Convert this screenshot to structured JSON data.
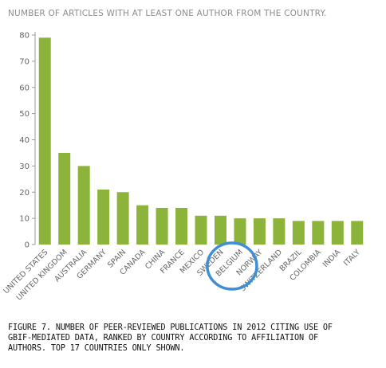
{
  "chart_data": {
    "type": "bar",
    "title": "NUMBER OF ARTICLES WITH AT LEAST ONE AUTHOR FROM THE COUNTRY.",
    "xlabel": "",
    "ylabel": "",
    "categories": [
      "UNITED STATES",
      "UNITED KINGDOM",
      "AUSTRALIA",
      "GERMANY",
      "SPAIN",
      "CANADA",
      "CHINA",
      "FRANCE",
      "MEXICO",
      "SWEDEN",
      "BELGIUM",
      "NORWAY",
      "SWITZERLAND",
      "BRAZIL",
      "COLOMBIA",
      "INDIA",
      "ITALY"
    ],
    "values": [
      79,
      35,
      30,
      21,
      20,
      15,
      14,
      14,
      11,
      11,
      10,
      10,
      10,
      9,
      9,
      9,
      9
    ],
    "ylim": [
      0,
      80
    ],
    "yticks": [
      "0",
      "10",
      "20",
      "30",
      "40",
      "50",
      "60",
      "70",
      "80"
    ],
    "grid": false,
    "highlighted_category": "BELGIUM",
    "colors": {
      "bar": "#8cb43a",
      "highlight_ring": "#3f8fd6",
      "axis": "#999999",
      "tick_text": "#666666"
    }
  },
  "caption": {
    "lines": [
      "FIGURE 7. NUMBER OF PEER-REVIEWED PUBLICATIONS IN 2012 CITING USE  OF",
      "GBIF-MEDIATED DATA, RANKED BY COUNTRY  ACCORDING TO AFFILIATION OF",
      "AUTHORS. TOP 17 COUNTRIES ONLY SHOWN."
    ]
  }
}
